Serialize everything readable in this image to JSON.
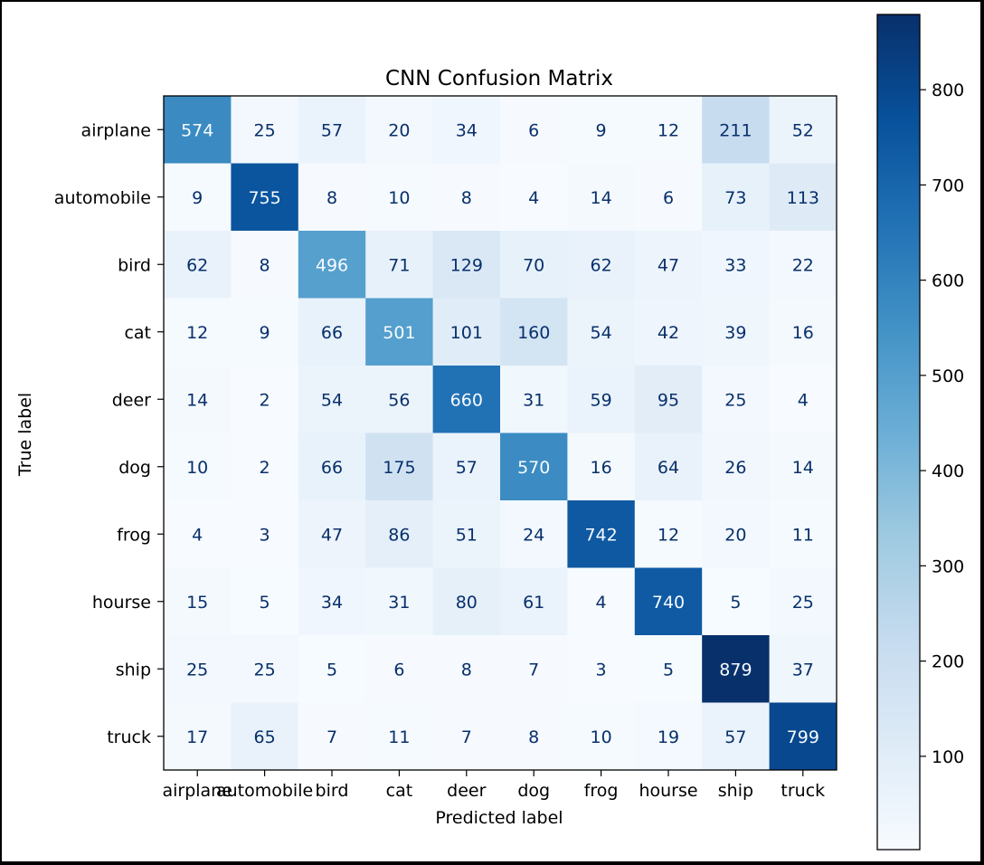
{
  "chart_data": {
    "type": "heatmap",
    "title": "CNN Confusion Matrix",
    "xlabel": "Predicted label",
    "ylabel": "True label",
    "x_categories": [
      "airplane",
      "automobile",
      "bird",
      "cat",
      "deer",
      "dog",
      "frog",
      "hourse",
      "ship",
      "truck"
    ],
    "y_categories": [
      "airplane",
      "automobile",
      "bird",
      "cat",
      "deer",
      "dog",
      "frog",
      "hourse",
      "ship",
      "truck"
    ],
    "values": [
      [
        574,
        25,
        57,
        20,
        34,
        6,
        9,
        12,
        211,
        52
      ],
      [
        9,
        755,
        8,
        10,
        8,
        4,
        14,
        6,
        73,
        113
      ],
      [
        62,
        8,
        496,
        71,
        129,
        70,
        62,
        47,
        33,
        22
      ],
      [
        12,
        9,
        66,
        501,
        101,
        160,
        54,
        42,
        39,
        16
      ],
      [
        14,
        2,
        54,
        56,
        660,
        31,
        59,
        95,
        25,
        4
      ],
      [
        10,
        2,
        66,
        175,
        57,
        570,
        16,
        64,
        26,
        14
      ],
      [
        4,
        3,
        47,
        86,
        51,
        24,
        742,
        12,
        20,
        11
      ],
      [
        15,
        5,
        34,
        31,
        80,
        61,
        4,
        740,
        5,
        25
      ],
      [
        25,
        25,
        5,
        6,
        8,
        7,
        3,
        5,
        879,
        37
      ],
      [
        17,
        65,
        7,
        11,
        7,
        8,
        10,
        19,
        57,
        799
      ]
    ],
    "colormap": "Blues",
    "colorbar": {
      "min": 2,
      "max": 879,
      "ticks": [
        100,
        200,
        300,
        400,
        500,
        600,
        700,
        800
      ],
      "tick_labels": [
        "100",
        "200",
        "300",
        "400",
        "500",
        "600",
        "700",
        "800"
      ]
    },
    "colors": {
      "low": "#f7fbff",
      "high": "#08306b",
      "text_dark": "#08306b",
      "text_light": "#f7fbff"
    }
  }
}
